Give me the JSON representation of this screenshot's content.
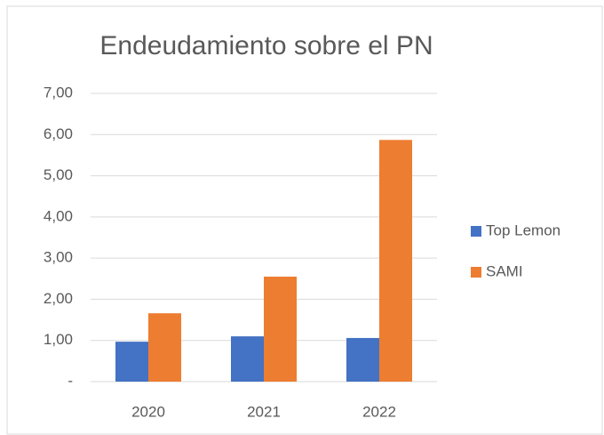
{
  "chart_data": {
    "type": "bar",
    "title": "Endeudamiento sobre el PN",
    "categories": [
      "2020",
      "2021",
      "2022"
    ],
    "series": [
      {
        "name": "Top Lemon",
        "color": "#4472c4",
        "values": [
          0.97,
          1.1,
          1.06
        ]
      },
      {
        "name": "SAMI",
        "color": "#ed7d31",
        "values": [
          1.66,
          2.55,
          5.87
        ]
      }
    ],
    "ylim": [
      0,
      7
    ],
    "yticks": [
      {
        "value": 0,
        "label": "-"
      },
      {
        "value": 1,
        "label": "1,00"
      },
      {
        "value": 2,
        "label": "2,00"
      },
      {
        "value": 3,
        "label": "3,00"
      },
      {
        "value": 4,
        "label": "4,00"
      },
      {
        "value": 5,
        "label": "5,00"
      },
      {
        "value": 6,
        "label": "6,00"
      },
      {
        "value": 7,
        "label": "7,00"
      }
    ],
    "grid": true,
    "legend": "right"
  }
}
